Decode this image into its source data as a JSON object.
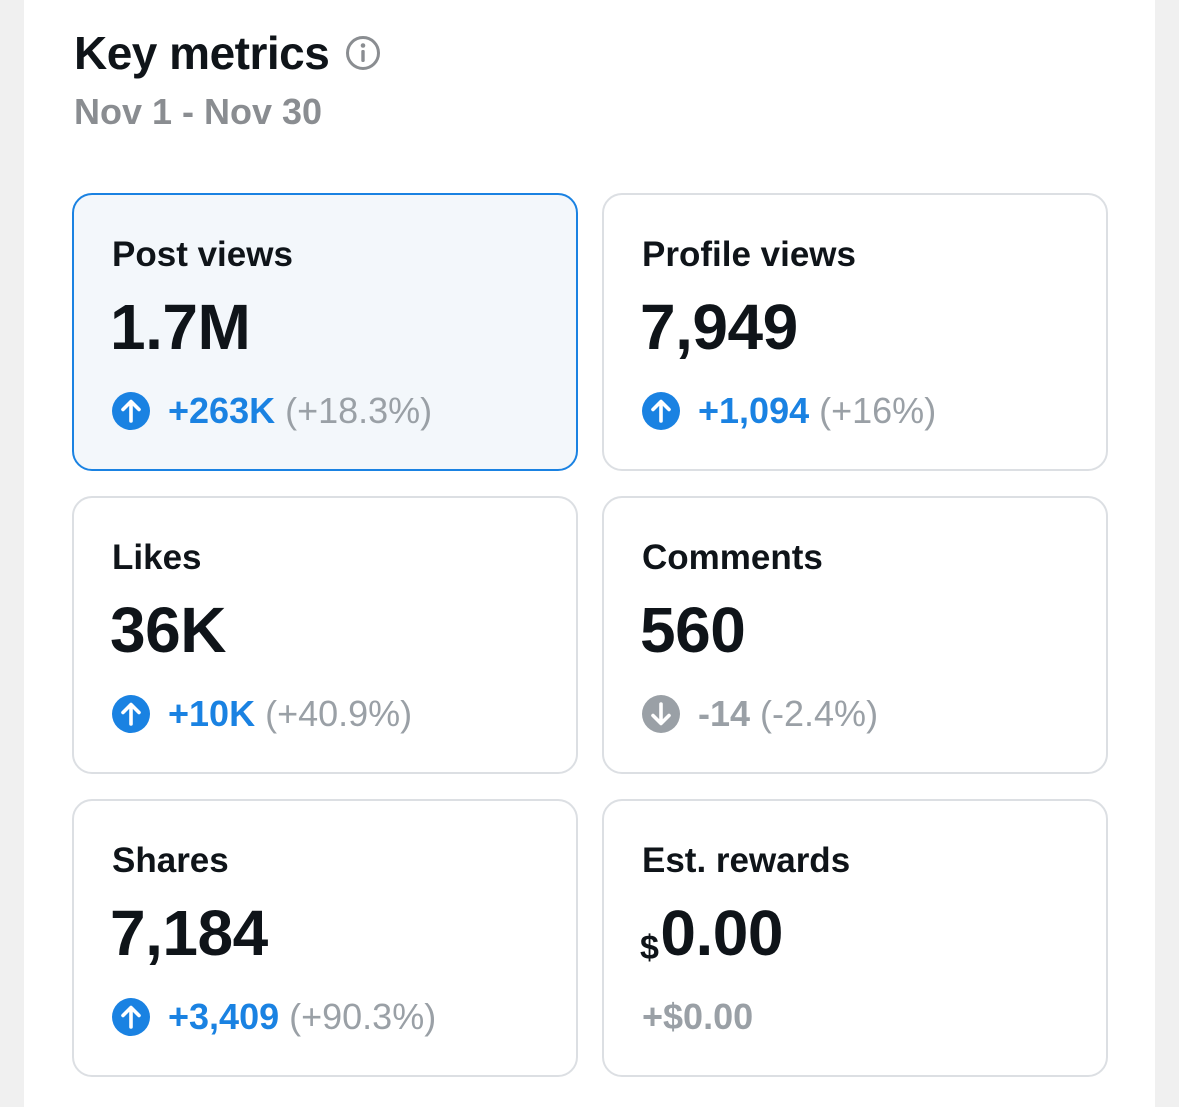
{
  "header": {
    "title": "Key metrics",
    "date_range": "Nov 1 - Nov 30"
  },
  "colors": {
    "accent": "#1a82e2",
    "muted": "#9aa0a6",
    "text": "#0f1419",
    "selected_background": "#f3f7fb"
  },
  "metrics": [
    {
      "label": "Post views",
      "value": "1.7M",
      "delta": "+263K",
      "percent": "(+18.3%)",
      "trend": "up",
      "trend_icon": "arrow-up-circle-icon",
      "selected": true
    },
    {
      "label": "Profile views",
      "value": "7,949",
      "delta": "+1,094",
      "percent": "(+16%)",
      "trend": "up",
      "trend_icon": "arrow-up-circle-icon",
      "selected": false
    },
    {
      "label": "Likes",
      "value": "36K",
      "delta": "+10K",
      "percent": "(+40.9%)",
      "trend": "up",
      "trend_icon": "arrow-up-circle-icon",
      "selected": false
    },
    {
      "label": "Comments",
      "value": "560",
      "delta": "-14",
      "percent": "(-2.4%)",
      "trend": "down",
      "trend_icon": "arrow-down-circle-icon",
      "selected": false
    },
    {
      "label": "Shares",
      "value": "7,184",
      "delta": "+3,409",
      "percent": "(+90.3%)",
      "trend": "up",
      "trend_icon": "arrow-up-circle-icon",
      "selected": false
    },
    {
      "label": "Est. rewards",
      "currency_symbol": "$",
      "value": "0.00",
      "delta": "+$0.00",
      "percent": "",
      "trend": "neutral",
      "trend_icon": "",
      "selected": false
    }
  ]
}
